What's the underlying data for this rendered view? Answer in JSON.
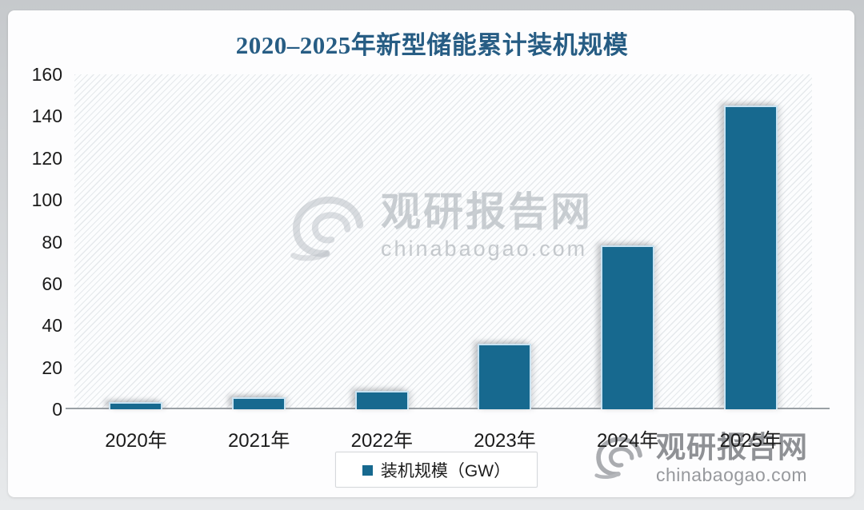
{
  "title": {
    "text": "2020–2025年新型储能累计装机规模",
    "color": "#275d84"
  },
  "legend": {
    "label": "装机规模（GW）",
    "marker_color": "#17698f"
  },
  "watermark_center": {
    "brand": "观研报告网",
    "site": "chinabaogao.com"
  },
  "watermark_corner": {
    "brand": "观研报告网",
    "site": "chinabaogao.com"
  },
  "chart_data": {
    "type": "bar",
    "title": "2020–2025年新型储能累计装机规模",
    "categories": [
      "2020年",
      "2021年",
      "2022年",
      "2023年",
      "2024年",
      "2025年"
    ],
    "series": [
      {
        "name": "装机规模（GW）",
        "values": [
          3.3,
          5.7,
          8.7,
          31.4,
          78.3,
          145
        ]
      }
    ],
    "xlabel": "",
    "ylabel": "",
    "ylim": [
      0,
      160
    ],
    "yticks": [
      0,
      20,
      40,
      60,
      80,
      100,
      120,
      140,
      160
    ],
    "bar_color": "#17698f",
    "bar_border_color": "#c9e3f2",
    "axis_line_color": "#9aa0a5",
    "grid": false,
    "legend_position": "bottom"
  }
}
